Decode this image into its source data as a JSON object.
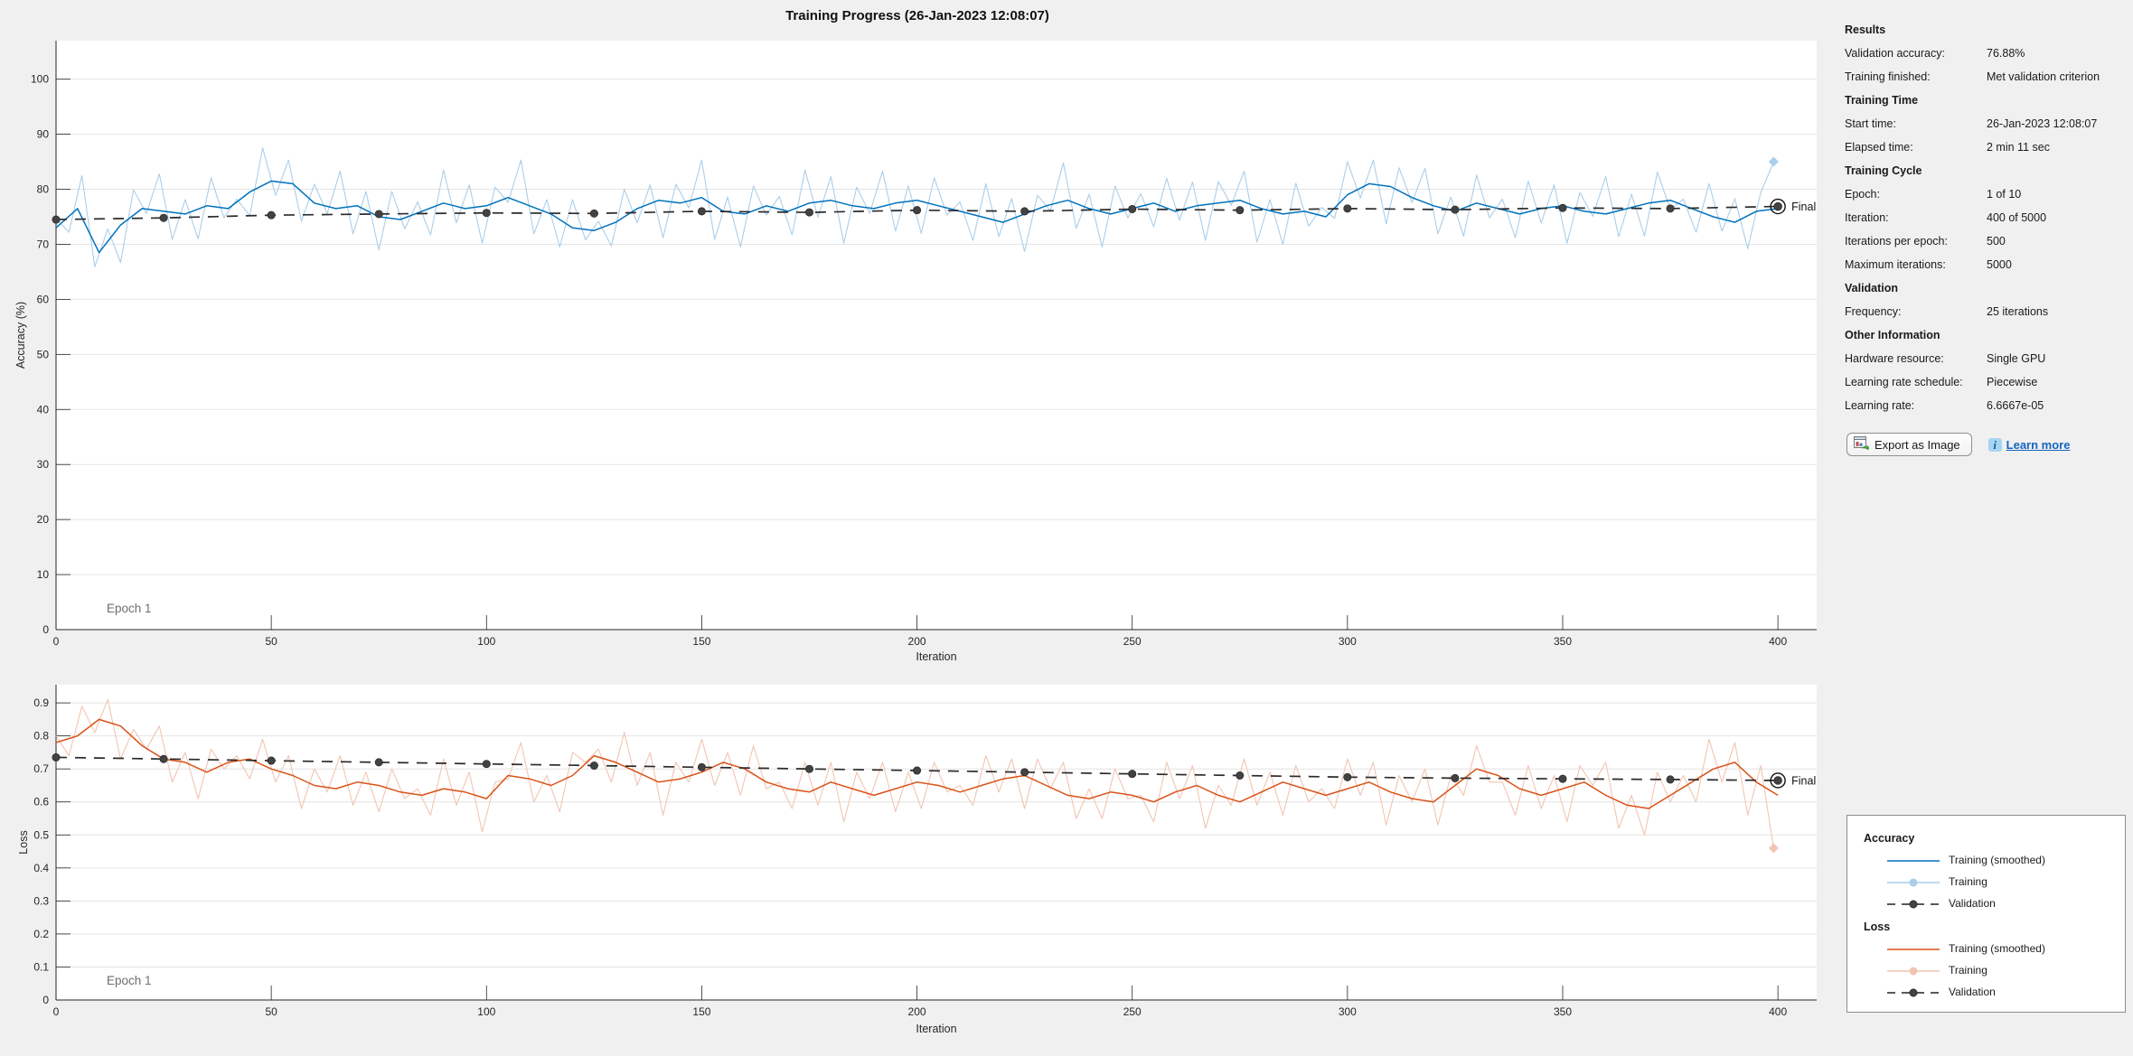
{
  "window": {
    "title": "Training Progress (26-Jan-2023 12:08:07)"
  },
  "panel": {
    "sections": [
      {
        "heading": "Results",
        "rows": [
          {
            "label": "Validation accuracy:",
            "value": "76.88%"
          },
          {
            "label": "Training finished:",
            "value": "Met validation criterion"
          }
        ]
      },
      {
        "heading": "Training Time",
        "rows": [
          {
            "label": "Start time:",
            "value": "26-Jan-2023 12:08:07"
          },
          {
            "label": "Elapsed time:",
            "value": "2 min 11 sec"
          }
        ]
      },
      {
        "heading": "Training Cycle",
        "rows": [
          {
            "label": "Epoch:",
            "value": "1 of 10"
          },
          {
            "label": "Iteration:",
            "value": "400 of 5000"
          },
          {
            "label": "Iterations per epoch:",
            "value": "500"
          },
          {
            "label": "Maximum iterations:",
            "value": "5000"
          }
        ]
      },
      {
        "heading": "Validation",
        "rows": [
          {
            "label": "Frequency:",
            "value": "25 iterations"
          }
        ]
      },
      {
        "heading": "Other Information",
        "rows": [
          {
            "label": "Hardware resource:",
            "value": "Single GPU"
          },
          {
            "label": "Learning rate schedule:",
            "value": "Piecewise"
          },
          {
            "label": "Learning rate:",
            "value": "6.6667e-05"
          }
        ]
      }
    ],
    "export_button": "Export as Image",
    "learn_more": "Learn more"
  },
  "legend": {
    "groups": [
      {
        "heading": "Accuracy",
        "items": [
          {
            "label": "Training (smoothed)",
            "style": "solid",
            "color": "#0072BD"
          },
          {
            "label": "Training",
            "style": "solid-marker",
            "color": "#ACCEE8"
          },
          {
            "label": "Validation",
            "style": "dashed-marker",
            "color": "#424242"
          }
        ]
      },
      {
        "heading": "Loss",
        "items": [
          {
            "label": "Training (smoothed)",
            "style": "solid",
            "color": "#D95319"
          },
          {
            "label": "Training",
            "style": "solid-marker",
            "color": "#F2C5B2"
          },
          {
            "label": "Validation",
            "style": "dashed-marker",
            "color": "#424242"
          }
        ]
      }
    ]
  },
  "chart_data": [
    {
      "type": "line",
      "title": "Accuracy",
      "xlabel": "Iteration",
      "ylabel": "Accuracy (%)",
      "epoch_label": "Epoch 1",
      "final_label": "Final",
      "xlim": [
        0,
        409
      ],
      "ylim": [
        0,
        107
      ],
      "xticks": [
        0,
        50,
        100,
        150,
        200,
        250,
        300,
        350,
        400
      ],
      "yticks": [
        0,
        10,
        20,
        30,
        40,
        50,
        60,
        70,
        80,
        90,
        100
      ],
      "grid": "horizontal",
      "legend_position": "outside-right",
      "series": [
        {
          "name": "Training",
          "color": "#ACCEE8",
          "width": 1.1,
          "x0": 0,
          "dx": 3,
          "final": "diamond",
          "values": [
            74.7,
            72.2,
            82.5,
            65.9,
            72.8,
            66.7,
            79.9,
            75.6,
            82.8,
            70.9,
            78.1,
            71,
            82.1,
            74.8,
            78.2,
            75.2,
            87.5,
            78.9,
            85.3,
            74.2,
            80.9,
            75.6,
            83.3,
            71.9,
            79.6,
            69,
            79.6,
            72.8,
            77.7,
            71.7,
            83.5,
            73.9,
            80.8,
            70.2,
            80.4,
            77.6,
            85.3,
            71.9,
            78.1,
            69.5,
            78.1,
            70.8,
            74.2,
            69.7,
            80,
            73.9,
            80.8,
            71.2,
            80.9,
            76.6,
            85.3,
            70.9,
            78.6,
            69.5,
            80.6,
            75.3,
            78.7,
            71.7,
            83.5,
            74.9,
            82.3,
            70.2,
            80.4,
            75.6,
            83.3,
            72.4,
            80.6,
            72,
            82.1,
            75.3,
            77.7,
            70.7,
            81,
            71.4,
            78.3,
            68.7,
            78.9,
            76.1,
            84.8,
            72.9,
            79.1,
            69.5,
            80.6,
            74.8,
            79.2,
            73.2,
            82,
            74.4,
            81.3,
            70.7,
            81.4,
            77.1,
            83.3,
            70.4,
            78.1,
            70,
            81.1,
            73.3,
            76.7,
            74.7,
            85,
            78.4,
            85.3,
            73.7,
            83.9,
            77.6,
            83.8,
            71.9,
            78.6,
            71.5,
            82.6,
            74.8,
            78.2,
            71.2,
            81.5,
            73.9,
            80.8,
            70.2,
            79.4,
            75.1,
            82.3,
            71.4,
            79.1,
            71.5,
            83.1,
            76.3,
            78.2,
            72.2,
            81,
            72.4,
            78.3,
            69.2,
            79.4,
            85
          ]
        },
        {
          "name": "Training (smoothed)",
          "color": "#0072BD",
          "width": 1.5,
          "x0": 0,
          "dx": 5,
          "values": [
            73,
            76.5,
            68.5,
            73.5,
            76.5,
            76,
            75.5,
            77,
            76.5,
            79.5,
            81.5,
            81,
            77.5,
            76.5,
            77,
            75,
            74.5,
            76,
            77.5,
            76.5,
            77,
            78.5,
            77,
            75.5,
            73,
            72.5,
            74,
            76.5,
            78,
            77.5,
            78.5,
            76,
            75.5,
            77,
            76,
            77.5,
            78,
            77,
            76.5,
            77.5,
            78,
            77,
            76,
            75,
            74,
            75.5,
            77,
            78,
            76.5,
            75.5,
            76.5,
            77.5,
            76,
            77,
            77.5,
            78,
            76.5,
            75.5,
            76,
            75,
            79,
            81,
            80.5,
            78.5,
            77,
            76,
            77.5,
            76.5,
            75.5,
            76.5,
            77,
            76,
            75.5,
            76.5,
            77.5,
            78,
            76.5,
            75,
            74,
            76,
            76.5
          ]
        },
        {
          "name": "Validation",
          "color": "#2b2b2b",
          "width": 1.7,
          "x0": 0,
          "dx": 25,
          "dash": "12 9",
          "markers": true,
          "marker_color": "#424242",
          "final": "ring",
          "values": [
            74.5,
            74.8,
            75.3,
            75.5,
            75.7,
            75.6,
            76,
            75.8,
            76.2,
            76,
            76.4,
            76.2,
            76.5,
            76.3,
            76.6,
            76.5,
            76.88
          ]
        }
      ]
    },
    {
      "type": "line",
      "title": "Loss",
      "xlabel": "Iteration",
      "ylabel": "Loss",
      "epoch_label": "Epoch 1",
      "final_label": "Final",
      "xlim": [
        0,
        409
      ],
      "ylim": [
        0,
        0.955
      ],
      "xticks": [
        0,
        50,
        100,
        150,
        200,
        250,
        300,
        350,
        400
      ],
      "yticks": [
        0,
        0.1,
        0.2,
        0.3,
        0.4,
        0.5,
        0.6,
        0.7,
        0.8,
        0.9
      ],
      "grid": "horizontal",
      "legend_position": "outside-right",
      "series": [
        {
          "name": "Training",
          "color": "#F2C5B2",
          "width": 1.1,
          "x0": 0,
          "dx": 3,
          "final": "diamond",
          "values": [
            0.8,
            0.74,
            0.89,
            0.81,
            0.91,
            0.73,
            0.82,
            0.76,
            0.83,
            0.66,
            0.75,
            0.61,
            0.76,
            0.7,
            0.74,
            0.67,
            0.79,
            0.66,
            0.74,
            0.58,
            0.7,
            0.63,
            0.74,
            0.59,
            0.69,
            0.57,
            0.7,
            0.61,
            0.64,
            0.56,
            0.73,
            0.59,
            0.69,
            0.51,
            0.66,
            0.67,
            0.78,
            0.6,
            0.68,
            0.57,
            0.75,
            0.72,
            0.76,
            0.66,
            0.81,
            0.65,
            0.75,
            0.56,
            0.72,
            0.66,
            0.79,
            0.65,
            0.75,
            0.62,
            0.77,
            0.64,
            0.66,
            0.58,
            0.72,
            0.59,
            0.72,
            0.54,
            0.69,
            0.61,
            0.72,
            0.57,
            0.69,
            0.58,
            0.72,
            0.63,
            0.65,
            0.59,
            0.74,
            0.63,
            0.73,
            0.58,
            0.73,
            0.64,
            0.72,
            0.55,
            0.64,
            0.55,
            0.7,
            0.61,
            0.62,
            0.54,
            0.72,
            0.61,
            0.71,
            0.52,
            0.65,
            0.59,
            0.73,
            0.59,
            0.69,
            0.56,
            0.71,
            0.6,
            0.64,
            0.58,
            0.73,
            0.62,
            0.72,
            0.53,
            0.68,
            0.6,
            0.7,
            0.53,
            0.68,
            0.62,
            0.77,
            0.66,
            0.66,
            0.56,
            0.71,
            0.58,
            0.68,
            0.54,
            0.71,
            0.65,
            0.72,
            0.52,
            0.62,
            0.5,
            0.69,
            0.6,
            0.68,
            0.6,
            0.79,
            0.66,
            0.78,
            0.56,
            0.71,
            0.46
          ]
        },
        {
          "name": "Training (smoothed)",
          "color": "#D95319",
          "width": 1.5,
          "x0": 0,
          "dx": 5,
          "values": [
            0.78,
            0.8,
            0.85,
            0.83,
            0.77,
            0.73,
            0.72,
            0.69,
            0.72,
            0.73,
            0.7,
            0.68,
            0.65,
            0.64,
            0.66,
            0.65,
            0.63,
            0.62,
            0.64,
            0.63,
            0.61,
            0.68,
            0.67,
            0.65,
            0.68,
            0.74,
            0.72,
            0.69,
            0.66,
            0.67,
            0.69,
            0.72,
            0.7,
            0.66,
            0.64,
            0.63,
            0.66,
            0.64,
            0.62,
            0.64,
            0.66,
            0.65,
            0.63,
            0.65,
            0.67,
            0.68,
            0.65,
            0.62,
            0.61,
            0.63,
            0.62,
            0.6,
            0.63,
            0.65,
            0.62,
            0.6,
            0.63,
            0.66,
            0.64,
            0.62,
            0.64,
            0.66,
            0.63,
            0.61,
            0.6,
            0.65,
            0.7,
            0.68,
            0.64,
            0.62,
            0.64,
            0.66,
            0.62,
            0.59,
            0.58,
            0.62,
            0.66,
            0.7,
            0.72,
            0.66,
            0.62
          ]
        },
        {
          "name": "Validation",
          "color": "#2b2b2b",
          "width": 1.7,
          "x0": 0,
          "dx": 25,
          "dash": "12 9",
          "markers": true,
          "marker_color": "#424242",
          "final": "ring",
          "values": [
            0.735,
            0.73,
            0.725,
            0.72,
            0.715,
            0.71,
            0.705,
            0.7,
            0.695,
            0.69,
            0.685,
            0.68,
            0.675,
            0.672,
            0.67,
            0.668,
            0.665
          ]
        }
      ]
    }
  ]
}
